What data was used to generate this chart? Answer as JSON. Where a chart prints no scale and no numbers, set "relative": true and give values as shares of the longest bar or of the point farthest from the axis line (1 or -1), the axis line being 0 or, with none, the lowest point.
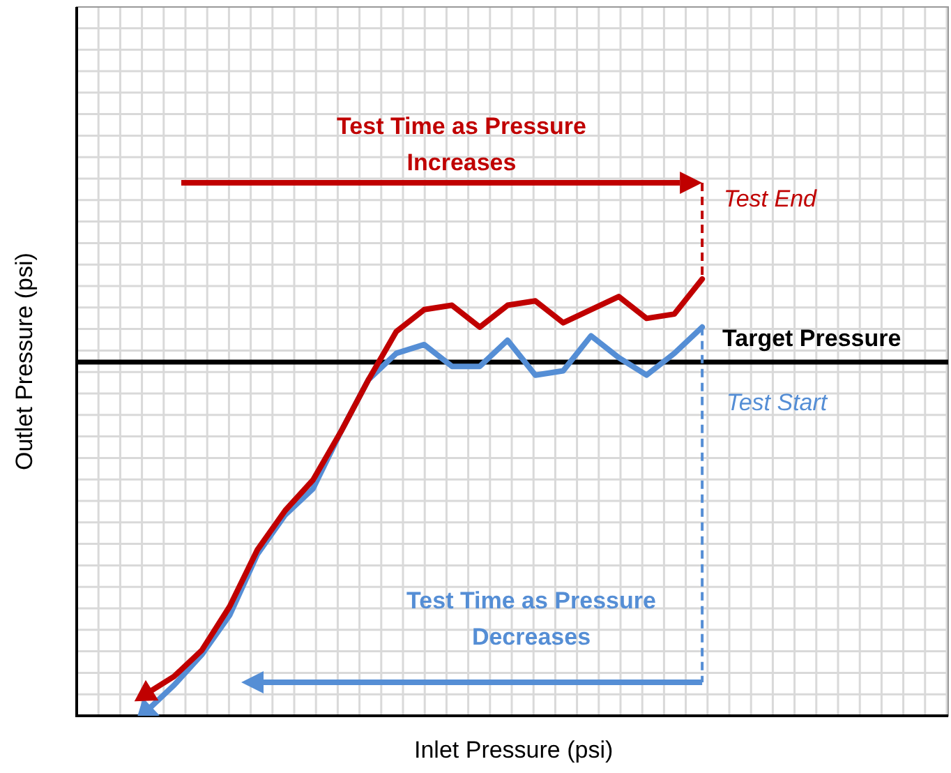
{
  "chart_data": {
    "type": "line",
    "relative": true,
    "xlabel": "Inlet Pressure (psi)",
    "ylabel": "Outlet Pressure (psi)",
    "categories": [
      null,
      null,
      null,
      null,
      null,
      null,
      null,
      null,
      null,
      null,
      null,
      null,
      null,
      null,
      null,
      null,
      null,
      null,
      null,
      null,
      null
    ],
    "series": [
      {
        "color": "#c00000",
        "values": [
          0.05,
          0.09,
          0.15,
          0.25,
          0.38,
          0.47,
          0.54,
          0.65,
          0.77,
          0.88,
          0.93,
          0.94,
          0.89,
          0.94,
          0.95,
          0.9,
          0.93,
          0.96,
          0.91,
          0.92,
          1
        ]
      },
      {
        "color": "#558ed5",
        "values": [
          0.01,
          0.07,
          0.14,
          0.23,
          0.37,
          0.46,
          0.52,
          0.65,
          0.77,
          0.83,
          0.85,
          0.8,
          0.8,
          0.86,
          0.78,
          0.79,
          0.87,
          0.82,
          0.78,
          0.83,
          0.89
        ]
      }
    ],
    "ref_lines": [
      {
        "axis": "y",
        "value": 0.81,
        "label": "Target Pressure",
        "color": "#000000"
      }
    ],
    "annotations": [
      "Test Time as Pressure Increases",
      "Test End",
      "Test Start",
      "Test Time as Pressure Decreases"
    ],
    "grid": true,
    "legend": false,
    "marker": "none",
    "line_style": "solid"
  }
}
